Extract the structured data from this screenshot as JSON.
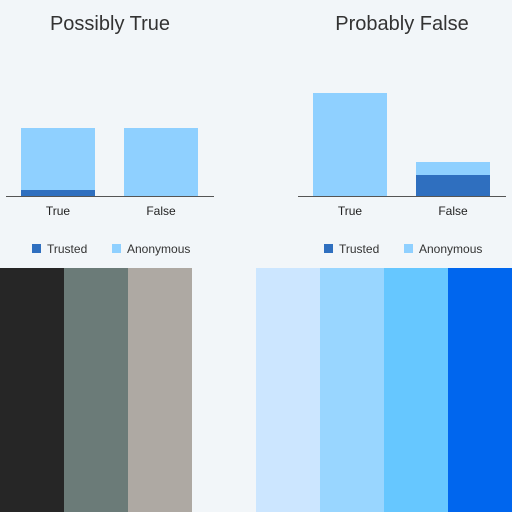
{
  "chart_data": [
    {
      "type": "bar",
      "stacked": true,
      "title": "Possibly True",
      "categories": [
        "True",
        "False"
      ],
      "series": [
        {
          "name": "Trusted",
          "values": [
            6,
            0
          ],
          "color": "#2f6fbf"
        },
        {
          "name": "Anonymous",
          "values": [
            62,
            68
          ],
          "color": "#8fd0ff"
        }
      ],
      "ylim": [
        0,
        100
      ],
      "legend_position": "bottom",
      "grid": false
    },
    {
      "type": "bar",
      "stacked": true,
      "title": "Probably False",
      "categories": [
        "True",
        "False"
      ],
      "series": [
        {
          "name": "Trusted",
          "values": [
            0,
            21
          ],
          "color": "#2f6fbf"
        },
        {
          "name": "Anonymous",
          "values": [
            103,
            13
          ],
          "color": "#8fd0ff"
        }
      ],
      "ylim": [
        0,
        100
      ],
      "legend_position": "bottom",
      "grid": false
    }
  ],
  "palette": [
    "#262626",
    "#6b7b78",
    "#aea9a3",
    "#f2f6f9",
    "#cce6ff",
    "#99d6ff",
    "#66c7ff",
    "#0066ee"
  ]
}
